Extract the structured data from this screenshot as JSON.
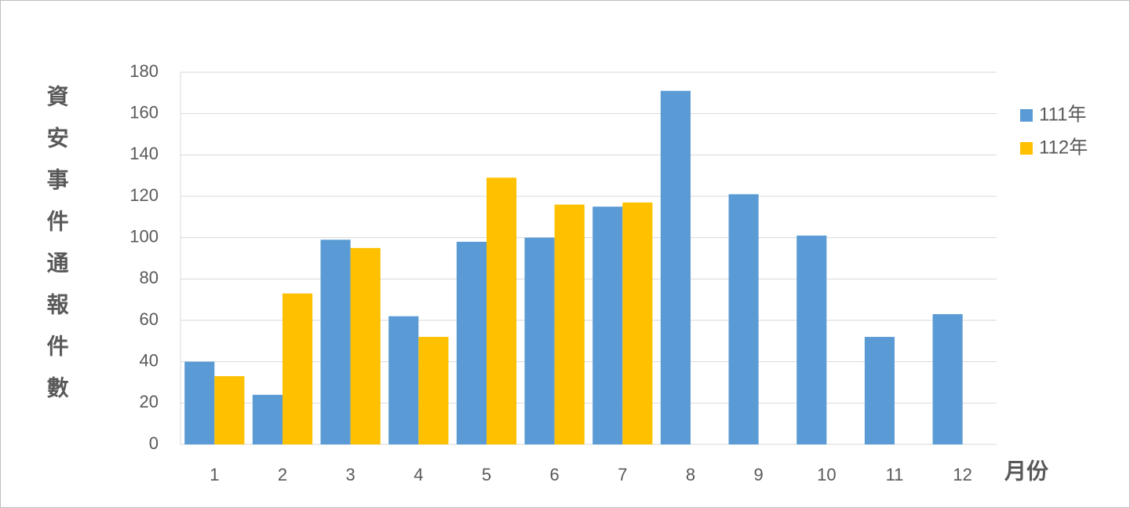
{
  "chart_data": {
    "type": "bar",
    "y_label": "資安事件通報件數",
    "x_label": "月份",
    "categories": [
      "1",
      "2",
      "3",
      "4",
      "5",
      "6",
      "7",
      "8",
      "9",
      "10",
      "11",
      "12"
    ],
    "series": [
      {
        "name": "111年",
        "color": "#5b9bd5",
        "values": [
          40,
          24,
          99,
          62,
          98,
          100,
          115,
          171,
          121,
          101,
          52,
          63
        ]
      },
      {
        "name": "112年",
        "color": "#ffc000",
        "values": [
          33,
          73,
          95,
          52,
          129,
          116,
          117,
          null,
          null,
          null,
          null,
          null
        ]
      }
    ],
    "ylim": [
      0,
      180
    ],
    "yticks": [
      0,
      20,
      40,
      60,
      80,
      100,
      120,
      140,
      160,
      180
    ],
    "grid": true
  }
}
